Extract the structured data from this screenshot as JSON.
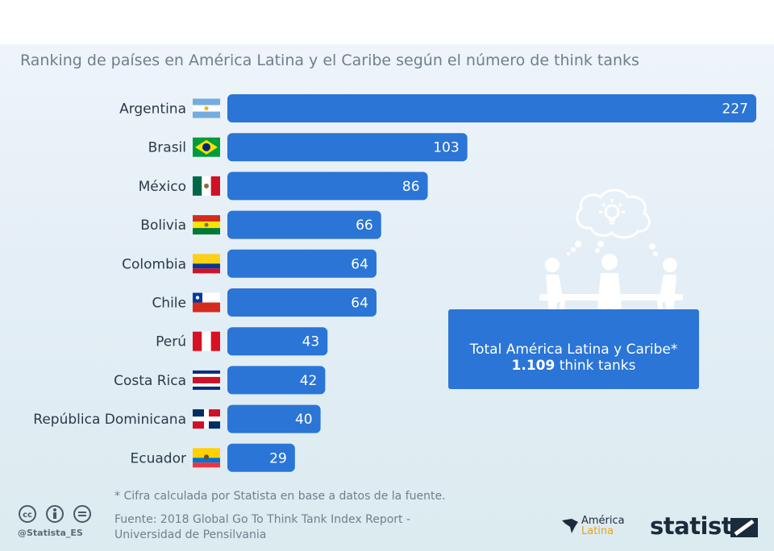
{
  "subtitle": "Ranking de países en América Latina y el Caribe según el número de think tanks",
  "colors": {
    "bar": "#2a75d6",
    "background": "#e4eef6",
    "text": "#2b3a48",
    "muted": "#6f7f8c"
  },
  "chart_data": {
    "type": "bar",
    "orientation": "horizontal",
    "title": "Ranking de países en América Latina y el Caribe según el número de think tanks",
    "categories": [
      "Argentina",
      "Brasil",
      "México",
      "Bolivia",
      "Colombia",
      "Chile",
      "Perú",
      "Costa Rica",
      "República Dominicana",
      "Ecuador"
    ],
    "values": [
      227,
      103,
      86,
      66,
      64,
      64,
      43,
      42,
      40,
      29
    ],
    "flags": [
      "argentina-flag",
      "brazil-flag",
      "mexico-flag",
      "bolivia-flag",
      "colombia-flag",
      "chile-flag",
      "peru-flag",
      "costa-rica-flag",
      "dominican-republic-flag",
      "ecuador-flag"
    ],
    "data_labels": true,
    "grid": false,
    "xlim": [
      0,
      227
    ]
  },
  "total_box": {
    "line1": "Total América Latina y Caribe*",
    "line2_value": "1.109",
    "line2_unit": " think tanks"
  },
  "illustration": "people-at-table-thinking-icon",
  "footer": {
    "note": "* Cifra calculada por Statista en base a datos de la fuente.",
    "source_line1": "Fuente: 2018 Global Go To Think Tank Index Report -",
    "source_line2": "Universidad de Pensilvania",
    "handle": "@Statista_ES",
    "cc_icons": [
      "cc-icon",
      "by-icon",
      "nd-icon"
    ],
    "partner_line1": "América",
    "partner_line2": "Latina",
    "brand": "statista"
  }
}
